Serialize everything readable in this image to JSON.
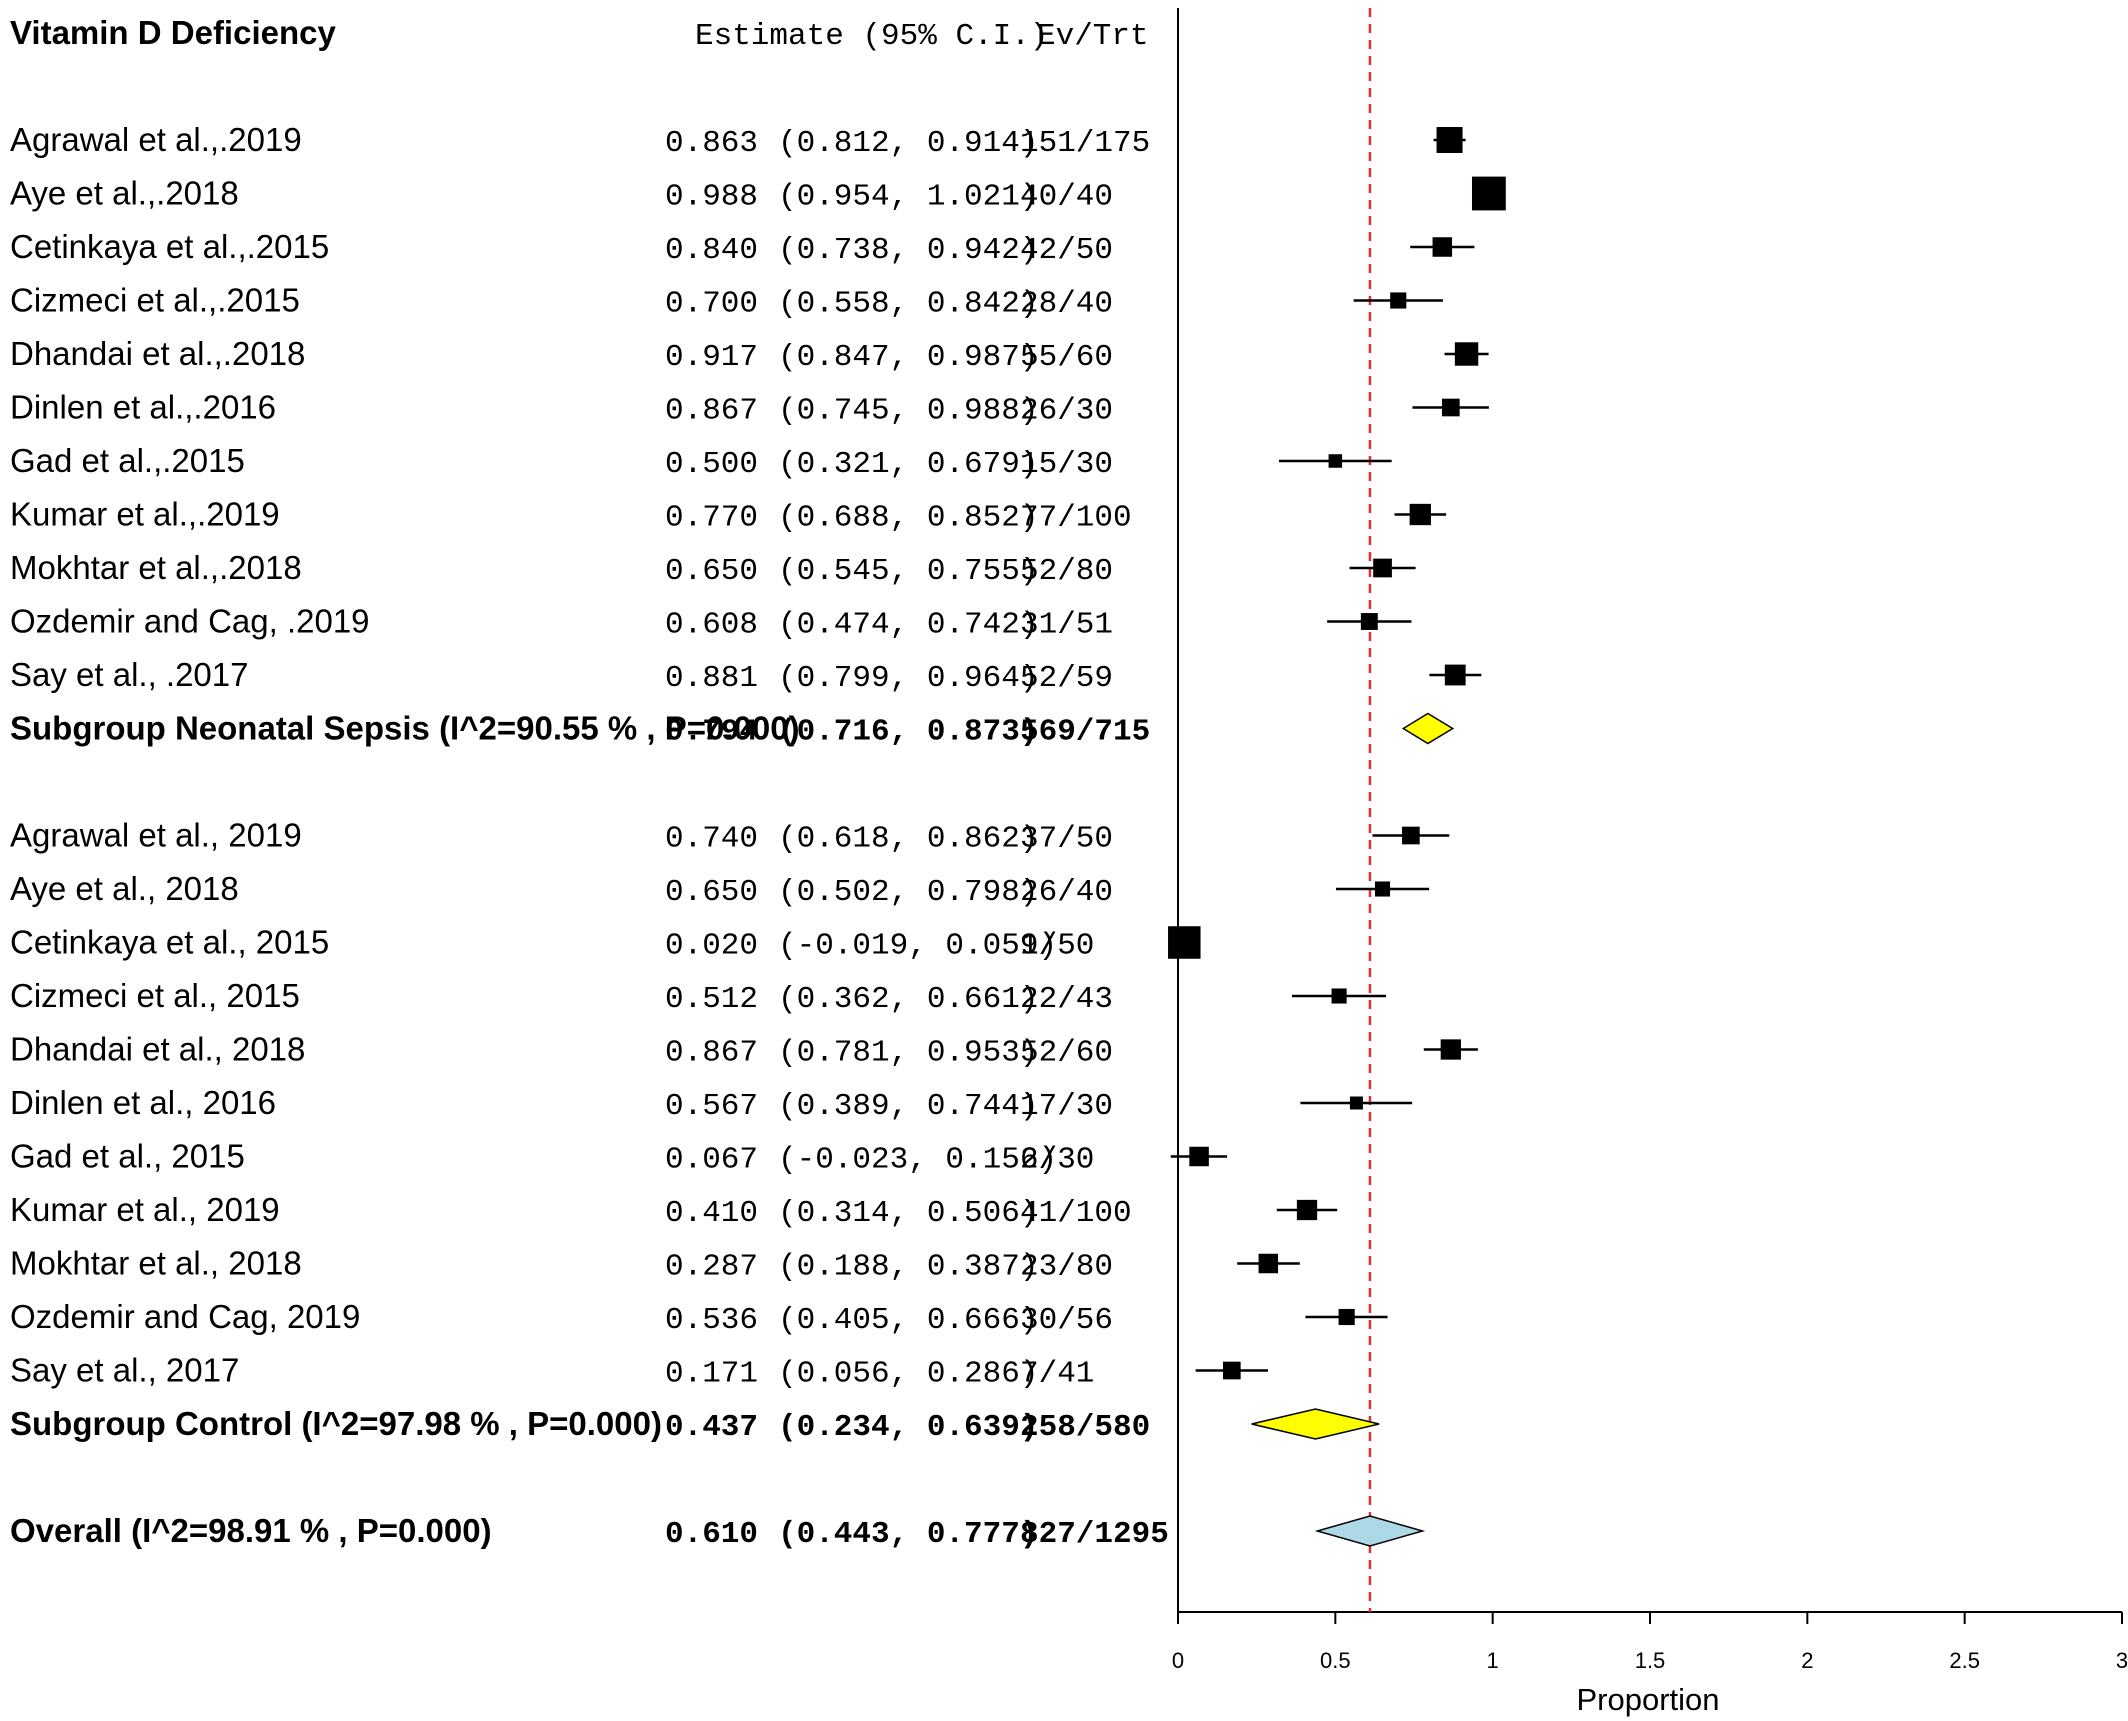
{
  "chart_data": {
    "type": "forest",
    "title": "Vitamin D Deficiency",
    "headers": {
      "estimate": "Estimate (95% C.I.)",
      "events": "Ev/Trt"
    },
    "xlabel": "Proportion",
    "xlim": [
      0,
      3
    ],
    "xticks": [
      "0",
      "0.5",
      "1",
      "1.5",
      "2",
      "2.5",
      "3"
    ],
    "reference_line": 0.61,
    "colors": {
      "subgroup_diamond": "#ffff00",
      "overall_diamond": "#add8e6",
      "reference_line": "#e03030"
    },
    "rows": [
      {
        "kind": "study",
        "label": "Agrawal et al.,.2019",
        "est": 0.863,
        "lo": 0.812,
        "hi": 0.914,
        "est_text": "0.863",
        "ci_text": "(0.812, 0.914)",
        "ev": "151/175",
        "weight": 1.0
      },
      {
        "kind": "study",
        "label": "Aye et al.,.2018",
        "est": 0.988,
        "lo": 0.954,
        "hi": 1.021,
        "est_text": "0.988",
        "ci_text": "(0.954, 1.021)",
        "ev": "40/40",
        "weight": 1.3
      },
      {
        "kind": "study",
        "label": "Cetinkaya et al.,.2015",
        "est": 0.84,
        "lo": 0.738,
        "hi": 0.942,
        "est_text": "0.840",
        "ci_text": "(0.738, 0.942)",
        "ev": "42/50",
        "weight": 0.75
      },
      {
        "kind": "study",
        "label": "Cizmeci et al.,.2015",
        "est": 0.7,
        "lo": 0.558,
        "hi": 0.842,
        "est_text": "0.700",
        "ci_text": "(0.558, 0.842)",
        "ev": "28/40",
        "weight": 0.62
      },
      {
        "kind": "study",
        "label": "Dhandai et al.,.2018",
        "est": 0.917,
        "lo": 0.847,
        "hi": 0.987,
        "est_text": "0.917",
        "ci_text": "(0.847, 0.987)",
        "ev": "55/60",
        "weight": 0.9
      },
      {
        "kind": "study",
        "label": "Dinlen et al.,.2016",
        "est": 0.867,
        "lo": 0.745,
        "hi": 0.988,
        "est_text": "0.867",
        "ci_text": "(0.745, 0.988)",
        "ev": "26/30",
        "weight": 0.68
      },
      {
        "kind": "study",
        "label": "Gad et al.,.2015",
        "est": 0.5,
        "lo": 0.321,
        "hi": 0.679,
        "est_text": "0.500",
        "ci_text": "(0.321, 0.679)",
        "ev": "15/30",
        "weight": 0.52
      },
      {
        "kind": "study",
        "label": "Kumar et al.,.2019",
        "est": 0.77,
        "lo": 0.688,
        "hi": 0.852,
        "est_text": "0.770",
        "ci_text": "(0.688, 0.852)",
        "ev": "77/100",
        "weight": 0.82
      },
      {
        "kind": "study",
        "label": "Mokhtar et al.,.2018",
        "est": 0.65,
        "lo": 0.545,
        "hi": 0.755,
        "est_text": "0.650",
        "ci_text": "(0.545, 0.755)",
        "ev": "52/80",
        "weight": 0.72
      },
      {
        "kind": "study",
        "label": "Ozdemir and Cag, .2019",
        "est": 0.608,
        "lo": 0.474,
        "hi": 0.742,
        "est_text": "0.608",
        "ci_text": "(0.474, 0.742)",
        "ev": "31/51",
        "weight": 0.65
      },
      {
        "kind": "study",
        "label": "Say et al., .2017",
        "est": 0.881,
        "lo": 0.799,
        "hi": 0.964,
        "est_text": "0.881",
        "ci_text": "(0.799, 0.964)",
        "ev": "52/59",
        "weight": 0.8
      },
      {
        "kind": "subgroup",
        "label": "Subgroup Neonatal Sepsis (I^2=90.55 % , P=0.000)",
        "est": 0.794,
        "lo": 0.716,
        "hi": 0.873,
        "est_text": "0.794",
        "ci_text": "(0.716, 0.873)",
        "ev": "569/715"
      },
      {
        "kind": "blank"
      },
      {
        "kind": "study",
        "label": "Agrawal et al., 2019",
        "est": 0.74,
        "lo": 0.618,
        "hi": 0.862,
        "est_text": "0.740",
        "ci_text": "(0.618, 0.862)",
        "ev": "37/50",
        "weight": 0.68
      },
      {
        "kind": "study",
        "label": "Aye et al., 2018",
        "est": 0.65,
        "lo": 0.502,
        "hi": 0.798,
        "est_text": "0.650",
        "ci_text": "(0.502, 0.798)",
        "ev": "26/40",
        "weight": 0.58
      },
      {
        "kind": "study",
        "label": "Cetinkaya et al., 2015",
        "est": 0.02,
        "lo": -0.019,
        "hi": 0.059,
        "est_text": "0.020",
        "ci_text": "(-0.019, 0.059)",
        "ev": "1/50",
        "weight": 1.25
      },
      {
        "kind": "study",
        "label": "Cizmeci et al., 2015",
        "est": 0.512,
        "lo": 0.362,
        "hi": 0.661,
        "est_text": "0.512",
        "ci_text": "(0.362, 0.661)",
        "ev": "22/43",
        "weight": 0.58
      },
      {
        "kind": "study",
        "label": "Dhandai et al., 2018",
        "est": 0.867,
        "lo": 0.781,
        "hi": 0.953,
        "est_text": "0.867",
        "ci_text": "(0.781, 0.953)",
        "ev": "52/60",
        "weight": 0.78
      },
      {
        "kind": "study",
        "label": "Dinlen et al., 2016",
        "est": 0.567,
        "lo": 0.389,
        "hi": 0.744,
        "est_text": "0.567",
        "ci_text": "(0.389, 0.744)",
        "ev": "17/30",
        "weight": 0.5
      },
      {
        "kind": "study",
        "label": "Gad et al., 2015",
        "est": 0.067,
        "lo": -0.023,
        "hi": 0.156,
        "est_text": "0.067",
        "ci_text": "(-0.023, 0.156)",
        "ev": "2/30",
        "weight": 0.75
      },
      {
        "kind": "study",
        "label": "Kumar et al., 2019",
        "est": 0.41,
        "lo": 0.314,
        "hi": 0.506,
        "est_text": "0.410",
        "ci_text": "(0.314, 0.506)",
        "ev": "41/100",
        "weight": 0.78
      },
      {
        "kind": "study",
        "label": "Mokhtar et al., 2018",
        "est": 0.287,
        "lo": 0.188,
        "hi": 0.387,
        "est_text": "0.287",
        "ci_text": "(0.188, 0.387)",
        "ev": "23/80",
        "weight": 0.75
      },
      {
        "kind": "study",
        "label": "Ozdemir and Cag, 2019",
        "est": 0.536,
        "lo": 0.405,
        "hi": 0.666,
        "est_text": "0.536",
        "ci_text": "(0.405, 0.666)",
        "ev": "30/56",
        "weight": 0.62
      },
      {
        "kind": "study",
        "label": "Say et al., 2017",
        "est": 0.171,
        "lo": 0.056,
        "hi": 0.286,
        "est_text": "0.171",
        "ci_text": "(0.056, 0.286)",
        "ev": "7/41",
        "weight": 0.68
      },
      {
        "kind": "subgroup",
        "label": "Subgroup Control (I^2=97.98 % , P=0.000)",
        "est": 0.437,
        "lo": 0.234,
        "hi": 0.639,
        "est_text": "0.437",
        "ci_text": "(0.234, 0.639)",
        "ev": "258/580"
      },
      {
        "kind": "blank"
      },
      {
        "kind": "overall",
        "label": "Overall (I^2=98.91 % , P=0.000)",
        "est": 0.61,
        "lo": 0.443,
        "hi": 0.777,
        "est_text": "0.610",
        "ci_text": "(0.443, 0.777)",
        "ev": "827/1295"
      }
    ]
  }
}
